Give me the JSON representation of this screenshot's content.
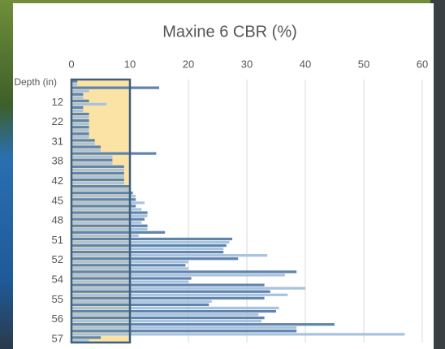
{
  "chart_data": {
    "type": "barh",
    "title": "Maxine 6 CBR (%)",
    "categories": [
      "Depth (in)",
      null,
      null,
      null,
      null,
      null,
      "12",
      null,
      null,
      null,
      null,
      null,
      "22",
      null,
      null,
      null,
      null,
      null,
      "31",
      null,
      null,
      null,
      null,
      null,
      "38",
      null,
      null,
      null,
      null,
      null,
      "42",
      null,
      null,
      null,
      null,
      null,
      "45",
      null,
      null,
      null,
      null,
      null,
      "48",
      null,
      null,
      null,
      null,
      null,
      "51",
      null,
      null,
      null,
      null,
      null,
      "52",
      null,
      null,
      null,
      null,
      null,
      "54",
      null,
      null,
      null,
      null,
      null,
      "55",
      null,
      null,
      null,
      null,
      null,
      "56",
      null,
      null,
      null,
      null,
      null,
      "57",
      null
    ],
    "values": [
      1,
      1,
      15,
      3,
      2,
      2,
      3,
      6,
      2,
      2,
      3,
      3,
      3,
      3,
      3,
      3,
      3,
      3,
      4,
      4,
      5,
      5,
      14.5,
      7,
      7,
      7,
      9,
      9,
      9,
      9,
      9,
      9,
      10,
      10,
      10.5,
      11,
      11,
      12.5,
      11,
      12,
      13,
      13,
      12.5,
      12,
      13,
      13,
      16,
      11.5,
      27.5,
      27,
      26.5,
      26,
      26,
      33.5,
      28.5,
      20,
      19.5,
      20,
      38.5,
      36.5,
      20.5,
      20,
      33,
      40,
      34,
      37,
      33,
      24,
      23.5,
      35.5,
      35,
      32,
      33,
      32.5,
      45,
      38.5,
      38.5,
      57,
      5,
      3
    ],
    "colors": [
      "#5f84ad",
      "#a8c3df"
    ],
    "xlim": [
      0,
      60
    ],
    "xticks": [
      0,
      10,
      20,
      30,
      40,
      50,
      60
    ],
    "grid": true,
    "highlight": [
      0,
      10
    ]
  }
}
